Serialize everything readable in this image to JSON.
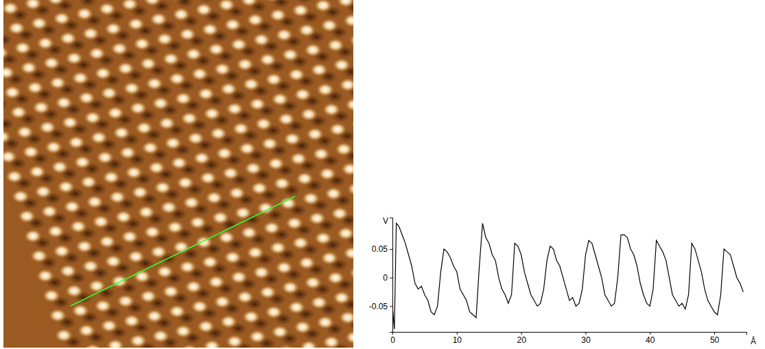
{
  "chart_data": {
    "type": "line",
    "x_label": "Å",
    "y_label": "V",
    "color": "#000000",
    "grid": false,
    "xlim": [
      0,
      55
    ],
    "ylim": [
      -0.095,
      0.105
    ],
    "xticks": [
      0,
      10,
      20,
      30,
      40,
      50
    ],
    "yticks": [
      -0.05,
      0,
      0.05
    ],
    "x": [
      0,
      0.3,
      0.6,
      1,
      1.5,
      2,
      2.5,
      3,
      3.5,
      4,
      4.5,
      5,
      5.5,
      6,
      6.5,
      7,
      7.5,
      8,
      8.5,
      9,
      9.5,
      10,
      10.5,
      11,
      11.5,
      12,
      12.5,
      13,
      13.5,
      14,
      14.5,
      15,
      15.5,
      16,
      16.5,
      17,
      17.5,
      18,
      18.5,
      19,
      19.5,
      20,
      20.5,
      21,
      21.5,
      22,
      22.5,
      23,
      23.5,
      24,
      24.5,
      25,
      25.5,
      26,
      26.5,
      27,
      27.5,
      28,
      28.5,
      29,
      29.5,
      30,
      30.5,
      31,
      31.5,
      32,
      32.5,
      33,
      33.5,
      34,
      34.5,
      35,
      35.5,
      36,
      36.5,
      37,
      37.5,
      38,
      38.5,
      39,
      39.5,
      40,
      40.5,
      41,
      41.5,
      42,
      42.5,
      43,
      43.5,
      44,
      44.5,
      45,
      45.5,
      46,
      46.5,
      47,
      47.5,
      48,
      48.5,
      49,
      49.5,
      50,
      50.5,
      51,
      51.5,
      52,
      52.5,
      53,
      53.5,
      54,
      54.5
    ],
    "values": [
      -0.05,
      -0.09,
      0.095,
      0.09,
      0.075,
      0.06,
      0.04,
      0.02,
      -0.01,
      -0.02,
      -0.015,
      -0.03,
      -0.04,
      -0.06,
      -0.065,
      -0.05,
      0.01,
      0.05,
      0.045,
      0.035,
      0.02,
      0.01,
      -0.02,
      -0.03,
      -0.04,
      -0.06,
      -0.065,
      -0.07,
      0.02,
      0.095,
      0.07,
      0.06,
      0.04,
      0.03,
      0.0,
      -0.02,
      -0.03,
      -0.045,
      -0.03,
      0.06,
      0.055,
      0.04,
      0.01,
      -0.01,
      -0.03,
      -0.04,
      -0.05,
      -0.045,
      -0.02,
      0.03,
      0.055,
      0.05,
      0.03,
      0.02,
      0.0,
      -0.02,
      -0.04,
      -0.035,
      -0.05,
      -0.045,
      -0.02,
      0.04,
      0.065,
      0.06,
      0.04,
      0.02,
      0.0,
      -0.03,
      -0.04,
      -0.05,
      -0.045,
      0.0,
      0.075,
      0.075,
      0.07,
      0.05,
      0.04,
      0.02,
      -0.01,
      -0.03,
      -0.045,
      -0.05,
      -0.02,
      0.065,
      0.055,
      0.045,
      0.03,
      0.0,
      -0.03,
      -0.04,
      -0.05,
      -0.045,
      -0.055,
      -0.03,
      0.06,
      0.05,
      0.03,
      0.01,
      -0.02,
      -0.04,
      -0.05,
      -0.06,
      -0.065,
      -0.03,
      0.05,
      0.045,
      0.04,
      0.02,
      0.0,
      -0.01,
      -0.025
    ]
  }
}
